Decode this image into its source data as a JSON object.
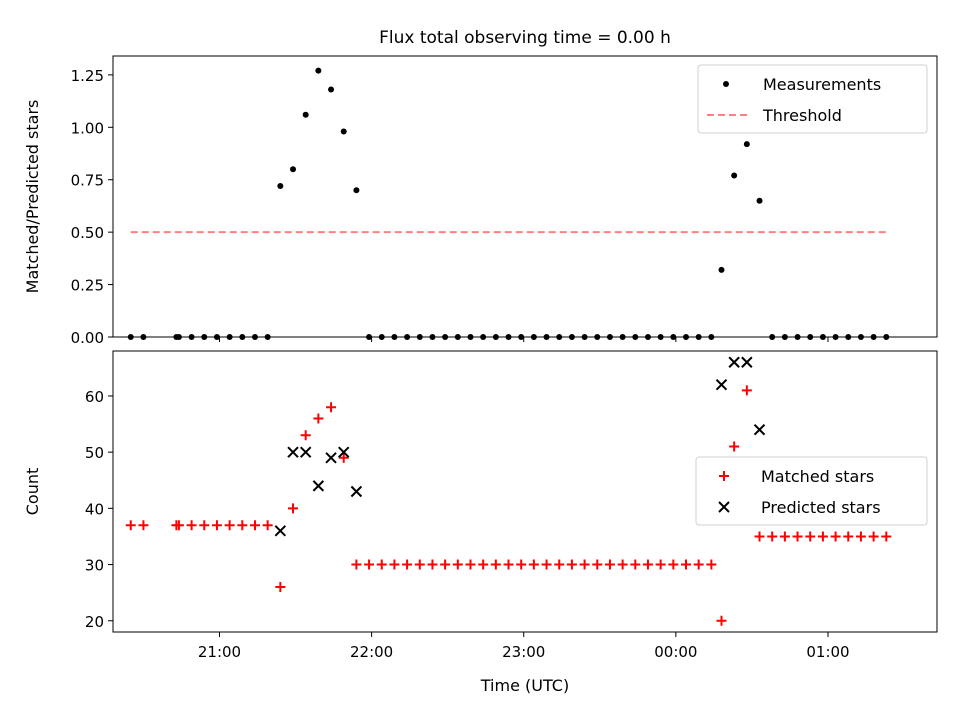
{
  "figure": {
    "title": "Flux total observing time = 0.00 h"
  },
  "chart_data": [
    {
      "type": "scatter",
      "ylabel": "Matched/Predicted stars",
      "xlabel": "",
      "xlim": [
        "20:18",
        "01:43"
      ],
      "ylim": [
        0.0,
        1.34
      ],
      "yticks": [
        0.0,
        0.25,
        0.5,
        0.75,
        1.0,
        1.25
      ],
      "ytick_labels": [
        "0.00",
        "0.25",
        "0.50",
        "0.75",
        "1.00",
        "1.25"
      ],
      "legend": {
        "position": "upper right",
        "entries": [
          "Measurements",
          "Threshold"
        ]
      },
      "series": [
        {
          "name": "Measurements",
          "marker": "dot",
          "color": "#000000",
          "x": [
            "20:25",
            "20:30",
            "20:43",
            "20:44",
            "20:49",
            "20:54",
            "20:59",
            "21:04",
            "21:09",
            "21:14",
            "21:19",
            "21:24",
            "21:29",
            "21:34",
            "21:39",
            "21:44",
            "21:49",
            "21:54",
            "21:59",
            "22:04",
            "22:09",
            "22:14",
            "22:19",
            "22:24",
            "22:29",
            "22:34",
            "22:39",
            "22:44",
            "22:49",
            "22:54",
            "22:59",
            "23:04",
            "23:09",
            "23:14",
            "23:19",
            "23:24",
            "23:29",
            "23:34",
            "23:39",
            "23:44",
            "23:49",
            "23:54",
            "23:59",
            "00:04",
            "00:09",
            "00:14",
            "00:18",
            "00:23",
            "00:28",
            "00:33",
            "00:38",
            "00:43",
            "00:48",
            "00:53",
            "00:58",
            "01:03",
            "01:08",
            "01:13",
            "01:18",
            "01:23"
          ],
          "y": [
            0,
            0,
            0,
            0,
            0,
            0,
            0,
            0,
            0,
            0,
            0,
            0.72,
            0.8,
            1.06,
            1.27,
            1.18,
            0.98,
            0.7,
            0,
            0,
            0,
            0,
            0,
            0,
            0,
            0,
            0,
            0,
            0,
            0,
            0,
            0,
            0,
            0,
            0,
            0,
            0,
            0,
            0,
            0,
            0,
            0,
            0,
            0,
            0,
            0,
            0.32,
            0.77,
            0.92,
            0.65,
            0,
            0,
            0,
            0,
            0,
            0,
            0,
            0,
            0,
            0
          ]
        },
        {
          "name": "Threshold",
          "style": "dashed",
          "color": "#ff8080",
          "x": [
            "20:25",
            "01:23"
          ],
          "y": [
            0.5,
            0.5
          ]
        }
      ]
    },
    {
      "type": "scatter",
      "ylabel": "Count",
      "xlabel": "Time (UTC)",
      "xlim": [
        "20:18",
        "01:43"
      ],
      "ylim": [
        18,
        68
      ],
      "yticks": [
        20,
        30,
        40,
        50,
        60
      ],
      "xticks": [
        "21:00",
        "22:00",
        "23:00",
        "00:00",
        "01:00"
      ],
      "legend": {
        "position": "center right",
        "entries": [
          "Matched stars",
          "Predicted stars"
        ]
      },
      "series": [
        {
          "name": "Matched stars",
          "marker": "plus",
          "color": "#ff0000",
          "x": [
            "20:25",
            "20:30",
            "20:43",
            "20:44",
            "20:49",
            "20:54",
            "20:59",
            "21:04",
            "21:09",
            "21:14",
            "21:19",
            "21:24",
            "21:29",
            "21:34",
            "21:39",
            "21:44",
            "21:49",
            "21:54",
            "21:59",
            "22:04",
            "22:09",
            "22:14",
            "22:19",
            "22:24",
            "22:29",
            "22:34",
            "22:39",
            "22:44",
            "22:49",
            "22:54",
            "22:59",
            "23:04",
            "23:09",
            "23:14",
            "23:19",
            "23:24",
            "23:29",
            "23:34",
            "23:39",
            "23:44",
            "23:49",
            "23:54",
            "23:59",
            "00:04",
            "00:09",
            "00:14",
            "00:18",
            "00:23",
            "00:28",
            "00:33",
            "00:38",
            "00:43",
            "00:48",
            "00:53",
            "00:58",
            "01:03",
            "01:08",
            "01:13",
            "01:18",
            "01:23"
          ],
          "y": [
            37,
            37,
            37,
            37,
            37,
            37,
            37,
            37,
            37,
            37,
            37,
            26,
            40,
            53,
            56,
            58,
            49,
            30,
            30,
            30,
            30,
            30,
            30,
            30,
            30,
            30,
            30,
            30,
            30,
            30,
            30,
            30,
            30,
            30,
            30,
            30,
            30,
            30,
            30,
            30,
            30,
            30,
            30,
            30,
            30,
            30,
            20,
            51,
            61,
            35,
            35,
            35,
            35,
            35,
            35,
            35,
            35,
            35,
            35,
            35
          ]
        },
        {
          "name": "Predicted stars",
          "marker": "x",
          "color": "#000000",
          "x": [
            "21:24",
            "21:29",
            "21:34",
            "21:39",
            "21:44",
            "21:49",
            "21:54",
            "00:18",
            "00:23",
            "00:28",
            "00:33"
          ],
          "y": [
            36,
            50,
            50,
            44,
            49,
            50,
            43,
            62,
            66,
            66,
            54
          ]
        }
      ]
    }
  ]
}
